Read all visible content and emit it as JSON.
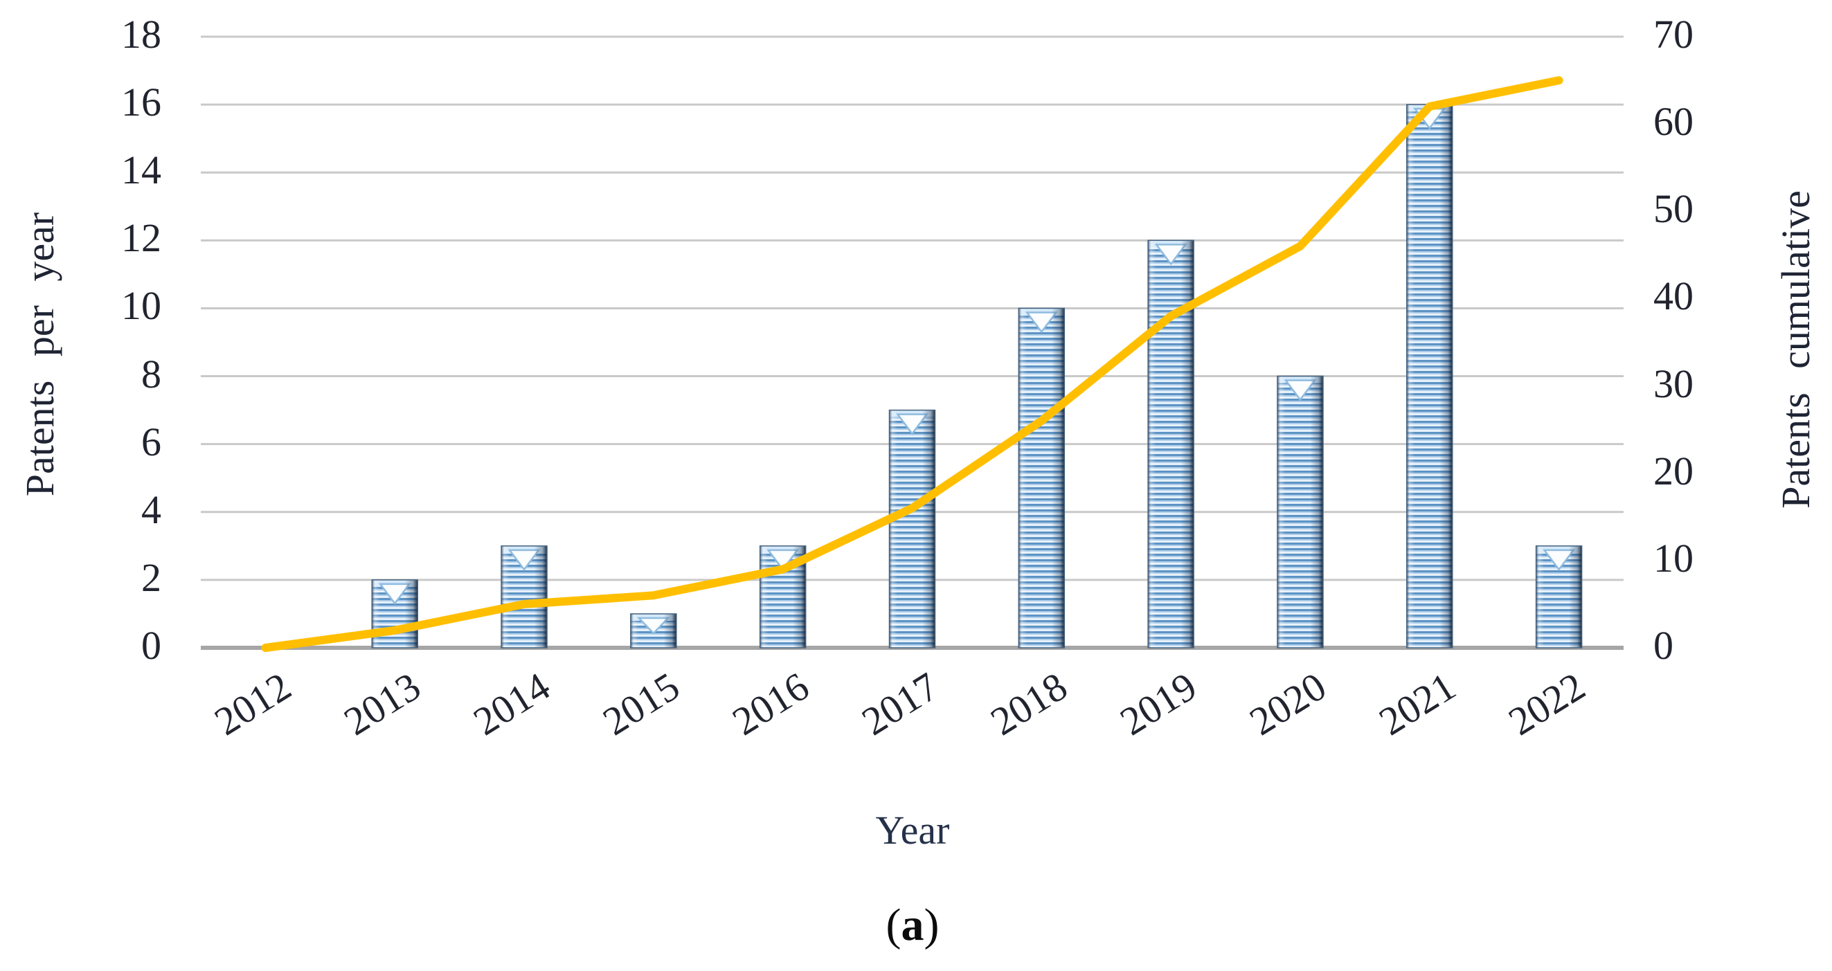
{
  "figure": {
    "panel_open": "(",
    "panel_letter": "a",
    "panel_close": ")"
  },
  "chart_data": {
    "type": "bar+line",
    "title": "",
    "categories": [
      "2012",
      "2013",
      "2014",
      "2015",
      "2016",
      "2017",
      "2018",
      "2019",
      "2020",
      "2021",
      "2022"
    ],
    "series": [
      {
        "name": "Patents per year",
        "type": "bar",
        "axis": "left",
        "values": [
          0,
          2,
          3,
          1,
          3,
          7,
          10,
          12,
          8,
          16,
          3
        ]
      },
      {
        "name": "Patents cumulative",
        "type": "line",
        "axis": "right",
        "values": [
          0,
          2,
          5,
          6,
          9,
          16,
          26,
          38,
          46,
          62,
          65
        ]
      }
    ],
    "xlabel": "Year",
    "left_axis": {
      "label": "Patents per year",
      "min": 0,
      "max": 18,
      "step": 2,
      "tick_labels": [
        "0",
        "2",
        "4",
        "6",
        "8",
        "10",
        "12",
        "14",
        "16",
        "18"
      ]
    },
    "right_axis": {
      "label": "Patents cumulative",
      "min": 0,
      "max": 70,
      "step": 10,
      "tick_labels": [
        "0",
        "10",
        "20",
        "30",
        "40",
        "50",
        "60",
        "70"
      ]
    },
    "grid": "horizontal",
    "legend_position": "none",
    "colors": {
      "bar_stripe_dark": "#5d93c4",
      "bar_stripe_mid": "#aecdea",
      "bar_stripe_light": "#e6f1fa",
      "bar_edge_dark": "#16293f",
      "bar_edge_left": "#2e5580",
      "bar_cap": "#d5e9f9",
      "notch_fill": "#fbfdff",
      "notch_stroke": "#8fbbdf",
      "line": "#FFBF00",
      "gridline": "#c9c9c9",
      "axis_line": "#a6a6a6",
      "text": "#21242e"
    }
  }
}
